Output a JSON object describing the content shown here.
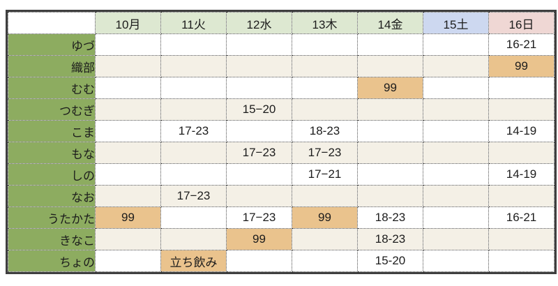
{
  "table": {
    "corner_label": "",
    "columns": [
      {
        "label": "10月",
        "kind": "weekday"
      },
      {
        "label": "11火",
        "kind": "weekday"
      },
      {
        "label": "12水",
        "kind": "weekday"
      },
      {
        "label": "13木",
        "kind": "weekday"
      },
      {
        "label": "14金",
        "kind": "weekday"
      },
      {
        "label": "15土",
        "kind": "saturday"
      },
      {
        "label": "16日",
        "kind": "sunday"
      }
    ],
    "rows": [
      {
        "label": "ゆづ",
        "stripe": "white",
        "cells": [
          {
            "text": ""
          },
          {
            "text": ""
          },
          {
            "text": ""
          },
          {
            "text": ""
          },
          {
            "text": ""
          },
          {
            "text": ""
          },
          {
            "text": "16-21"
          }
        ]
      },
      {
        "label": "織部",
        "stripe": "beige",
        "cells": [
          {
            "text": ""
          },
          {
            "text": ""
          },
          {
            "text": ""
          },
          {
            "text": ""
          },
          {
            "text": ""
          },
          {
            "text": ""
          },
          {
            "text": "99",
            "highlight": true
          }
        ]
      },
      {
        "label": "むむ",
        "stripe": "white",
        "cells": [
          {
            "text": ""
          },
          {
            "text": ""
          },
          {
            "text": ""
          },
          {
            "text": ""
          },
          {
            "text": "99",
            "highlight": true
          },
          {
            "text": ""
          },
          {
            "text": ""
          }
        ]
      },
      {
        "label": "つむぎ",
        "stripe": "beige",
        "cells": [
          {
            "text": ""
          },
          {
            "text": ""
          },
          {
            "text": "15−20"
          },
          {
            "text": ""
          },
          {
            "text": ""
          },
          {
            "text": ""
          },
          {
            "text": ""
          }
        ]
      },
      {
        "label": "こま",
        "stripe": "white",
        "cells": [
          {
            "text": ""
          },
          {
            "text": "17-23"
          },
          {
            "text": ""
          },
          {
            "text": "18-23"
          },
          {
            "text": ""
          },
          {
            "text": ""
          },
          {
            "text": "14-19"
          }
        ]
      },
      {
        "label": "もな",
        "stripe": "beige",
        "cells": [
          {
            "text": ""
          },
          {
            "text": ""
          },
          {
            "text": "17−23"
          },
          {
            "text": "17−23"
          },
          {
            "text": ""
          },
          {
            "text": ""
          },
          {
            "text": ""
          }
        ]
      },
      {
        "label": "しの",
        "stripe": "white",
        "cells": [
          {
            "text": ""
          },
          {
            "text": ""
          },
          {
            "text": ""
          },
          {
            "text": "17−21"
          },
          {
            "text": ""
          },
          {
            "text": ""
          },
          {
            "text": "14-19"
          }
        ]
      },
      {
        "label": "なお",
        "stripe": "beige",
        "cells": [
          {
            "text": ""
          },
          {
            "text": "17−23"
          },
          {
            "text": ""
          },
          {
            "text": ""
          },
          {
            "text": ""
          },
          {
            "text": ""
          },
          {
            "text": ""
          }
        ]
      },
      {
        "label": "うたかた",
        "stripe": "white",
        "cells": [
          {
            "text": "99",
            "highlight": true
          },
          {
            "text": ""
          },
          {
            "text": "17−23"
          },
          {
            "text": "99",
            "highlight": true
          },
          {
            "text": "18-23"
          },
          {
            "text": ""
          },
          {
            "text": "16-21"
          }
        ]
      },
      {
        "label": "きなこ",
        "stripe": "beige",
        "cells": [
          {
            "text": ""
          },
          {
            "text": ""
          },
          {
            "text": "99",
            "highlight": true
          },
          {
            "text": ""
          },
          {
            "text": "18-23"
          },
          {
            "text": ""
          },
          {
            "text": ""
          }
        ]
      },
      {
        "label": "ちょの",
        "stripe": "white",
        "cells": [
          {
            "text": ""
          },
          {
            "text": "立ち飲み",
            "highlight": true
          },
          {
            "text": ""
          },
          {
            "text": ""
          },
          {
            "text": "15-20"
          },
          {
            "text": ""
          },
          {
            "text": ""
          }
        ]
      }
    ]
  },
  "colors": {
    "weekday_header": "#dde8d1",
    "saturday_header": "#cdd8f0",
    "sunday_header": "#efd7d4",
    "row_label_bg": "#8dac60",
    "row_label_text": "#f8f8f2",
    "stripe_beige": "#f4f0e6",
    "highlight_orange": "#eac38d",
    "border_dark": "#3f3f3f"
  }
}
